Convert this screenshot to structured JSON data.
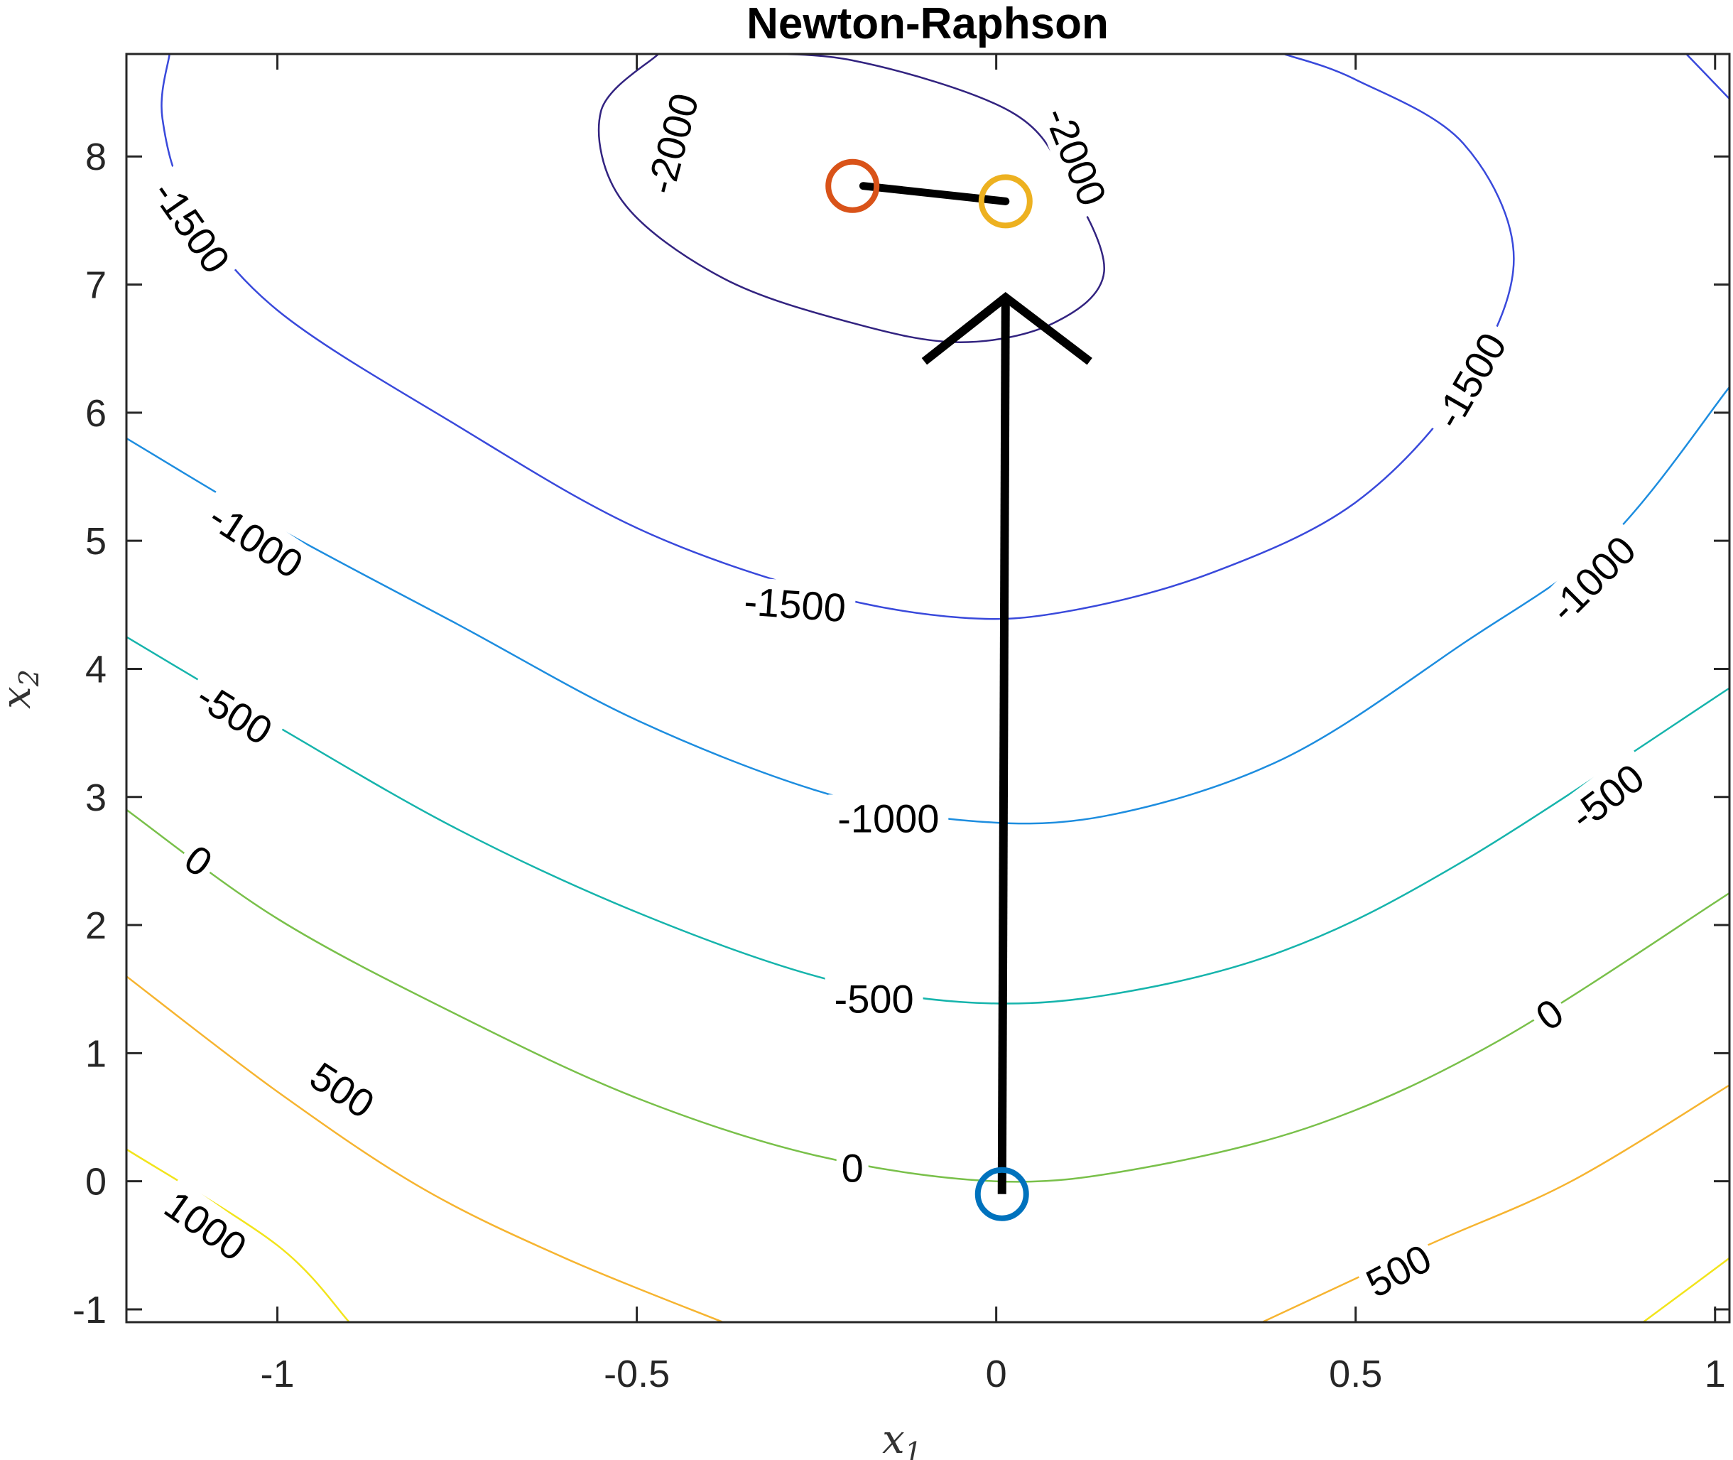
{
  "chart_data": {
    "type": "contour",
    "title": "Newton-Raphson",
    "xlabel_var": "x",
    "xlabel_sub": "1",
    "ylabel_var": "x",
    "ylabel_sub": "2",
    "xlim": [
      -1.21,
      1.02
    ],
    "ylim": [
      -1.1,
      8.8
    ],
    "xticks": [
      -1,
      -0.5,
      0,
      0.5,
      1
    ],
    "xtick_labels": [
      "-1",
      "-0.5",
      "0",
      "0.5",
      "1"
    ],
    "yticks": [
      -1,
      0,
      1,
      2,
      3,
      4,
      5,
      6,
      7,
      8
    ],
    "ytick_labels": [
      "-1",
      "0",
      "1",
      "2",
      "3",
      "4",
      "5",
      "6",
      "7",
      "8"
    ],
    "contours": [
      {
        "level": 1000,
        "label": "1000",
        "color": "#f2e41b",
        "points": [
          [
            -1.21,
            0.25
          ],
          [
            -1.0,
            -0.5
          ],
          [
            -0.9,
            -1.1
          ]
        ]
      },
      {
        "level": 1000,
        "label": "",
        "color": "#f2e41b",
        "points": [
          [
            0.9,
            -1.1
          ],
          [
            1.02,
            -0.6
          ]
        ]
      },
      {
        "level": 500,
        "label": "500",
        "color": "#f6b430",
        "points": [
          [
            -1.21,
            1.6
          ],
          [
            -1.0,
            0.7
          ],
          [
            -0.8,
            -0.05
          ],
          [
            -0.6,
            -0.6
          ],
          [
            -0.38,
            -1.1
          ]
        ]
      },
      {
        "level": 500,
        "label": "500",
        "color": "#f6b430",
        "points": [
          [
            0.37,
            -1.1
          ],
          [
            0.6,
            -0.5
          ],
          [
            0.8,
            0.0
          ],
          [
            1.02,
            0.75
          ]
        ]
      },
      {
        "level": 0,
        "label": "0",
        "color": "#79c04a",
        "points": [
          [
            -1.21,
            2.9
          ],
          [
            -1.0,
            2.05
          ],
          [
            -0.75,
            1.3
          ],
          [
            -0.5,
            0.65
          ],
          [
            -0.25,
            0.2
          ],
          [
            0.0,
            0.0
          ],
          [
            0.2,
            0.1
          ],
          [
            0.45,
            0.45
          ],
          [
            0.7,
            1.1
          ],
          [
            1.02,
            2.25
          ]
        ]
      },
      {
        "level": -500,
        "label": "-500",
        "color": "#16b4ac",
        "points": [
          [
            -1.21,
            4.25
          ],
          [
            -1.0,
            3.55
          ],
          [
            -0.75,
            2.75
          ],
          [
            -0.5,
            2.1
          ],
          [
            -0.25,
            1.6
          ],
          [
            -0.05,
            1.4
          ],
          [
            0.15,
            1.45
          ],
          [
            0.4,
            1.8
          ],
          [
            0.65,
            2.5
          ],
          [
            1.02,
            3.85
          ]
        ]
      },
      {
        "level": -1000,
        "label": "-1000",
        "color": "#1d8ddf",
        "points": [
          [
            -1.21,
            5.8
          ],
          [
            -1.0,
            5.1
          ],
          [
            -0.75,
            4.35
          ],
          [
            -0.5,
            3.6
          ],
          [
            -0.25,
            3.05
          ],
          [
            -0.05,
            2.82
          ],
          [
            0.15,
            2.85
          ],
          [
            0.4,
            3.3
          ],
          [
            0.65,
            4.2
          ],
          [
            0.85,
            5.0
          ],
          [
            1.02,
            6.2
          ]
        ]
      },
      {
        "level": -1500,
        "label": "-1500",
        "color": "#3949db",
        "points": [
          [
            -1.15,
            8.8
          ],
          [
            -1.16,
            8.3
          ],
          [
            -1.12,
            7.6
          ],
          [
            -1.0,
            6.8
          ],
          [
            -0.75,
            5.9
          ],
          [
            -0.5,
            5.1
          ],
          [
            -0.25,
            4.6
          ],
          [
            -0.05,
            4.4
          ],
          [
            0.1,
            4.45
          ],
          [
            0.3,
            4.75
          ],
          [
            0.5,
            5.3
          ],
          [
            0.65,
            6.2
          ],
          [
            0.72,
            7.2
          ],
          [
            0.65,
            8.1
          ],
          [
            0.5,
            8.6
          ],
          [
            0.4,
            8.8
          ]
        ]
      },
      {
        "level": -2000,
        "label": "-2000",
        "color": "#322380",
        "points": [
          [
            -0.47,
            8.8
          ],
          [
            -0.55,
            8.35
          ],
          [
            -0.52,
            7.65
          ],
          [
            -0.38,
            7.05
          ],
          [
            -0.2,
            6.7
          ],
          [
            -0.05,
            6.55
          ],
          [
            0.08,
            6.7
          ],
          [
            0.15,
            7.1
          ],
          [
            0.1,
            7.8
          ],
          [
            0.02,
            8.35
          ],
          [
            -0.2,
            8.75
          ],
          [
            -0.38,
            8.8
          ]
        ]
      },
      {
        "level": -1500,
        "label": "",
        "color": "#3949db",
        "points": [
          [
            0.96,
            8.8
          ],
          [
            1.02,
            8.45
          ]
        ]
      }
    ],
    "labels": [
      {
        "text": "1000",
        "x": -1.1,
        "y": -0.35,
        "angle": 35
      },
      {
        "text": "500",
        "x": -0.91,
        "y": 0.71,
        "angle": 33
      },
      {
        "text": "0",
        "x": -1.11,
        "y": 2.5,
        "angle": 35
      },
      {
        "text": "-500",
        "x": -1.06,
        "y": 3.65,
        "angle": 32
      },
      {
        "text": "-1000",
        "x": -1.03,
        "y": 5.0,
        "angle": 33
      },
      {
        "text": "-1500",
        "x": -1.12,
        "y": 7.45,
        "angle": 55
      },
      {
        "text": "-1500",
        "x": -0.28,
        "y": 4.5,
        "angle": 4
      },
      {
        "text": "-2000",
        "x": -0.45,
        "y": 8.1,
        "angle": -75
      },
      {
        "text": "-2000",
        "x": 0.11,
        "y": 8.0,
        "angle": 68
      },
      {
        "text": "-1000",
        "x": -0.15,
        "y": 2.83,
        "angle": 0
      },
      {
        "text": "-500",
        "x": -0.17,
        "y": 1.42,
        "angle": 0
      },
      {
        "text": "0",
        "x": -0.2,
        "y": 0.1,
        "angle": 0
      },
      {
        "text": "-1500",
        "x": 0.66,
        "y": 6.25,
        "angle": -60
      },
      {
        "text": "-1000",
        "x": 0.83,
        "y": 4.7,
        "angle": -45
      },
      {
        "text": "-500",
        "x": 0.85,
        "y": 3.0,
        "angle": -37
      },
      {
        "text": "0",
        "x": 0.77,
        "y": 1.3,
        "angle": -35
      },
      {
        "text": "500",
        "x": 0.56,
        "y": -0.7,
        "angle": -28
      }
    ],
    "iterates": [
      {
        "x": 0.008,
        "y": -0.1,
        "color": "#0072bd"
      },
      {
        "x": 0.013,
        "y": 7.65,
        "color": "#edb120"
      },
      {
        "x": -0.2,
        "y": 7.77,
        "color": "#d95319"
      }
    ],
    "path": [
      [
        0.008,
        -0.1
      ],
      [
        0.013,
        6.9
      ],
      [
        0.013,
        7.65
      ],
      [
        -0.185,
        7.77
      ]
    ],
    "arrowhead": {
      "tip": [
        0.013,
        6.9
      ],
      "left": [
        -0.1,
        6.4
      ],
      "right": [
        0.13,
        6.4
      ]
    }
  }
}
